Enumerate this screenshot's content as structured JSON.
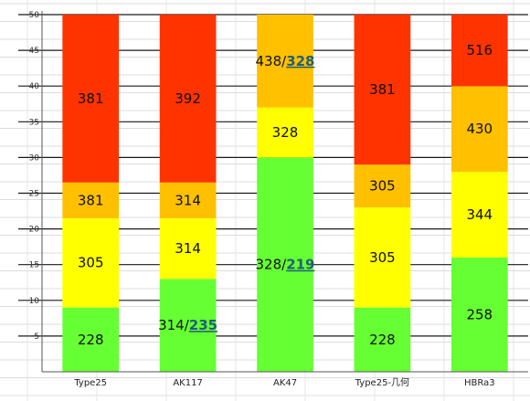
{
  "chart_data": {
    "type": "bar",
    "stacked": true,
    "title": "",
    "xlabel": "",
    "ylabel": "",
    "ylim": [
      0,
      50
    ],
    "yticks": [
      5,
      10,
      15,
      20,
      25,
      30,
      35,
      40,
      45,
      50
    ],
    "grid": true,
    "categories": [
      "Type25",
      "AK117",
      "AK47",
      "Type25-几何",
      "HBRa3"
    ],
    "bars": [
      {
        "category": "Type25",
        "segments": [
          {
            "from": 0,
            "to": 9,
            "label": "228",
            "color": "#66ff33"
          },
          {
            "from": 9,
            "to": 21.5,
            "label": "305",
            "color": "#ffff00"
          },
          {
            "from": 21.5,
            "to": 26.5,
            "label": "381",
            "color": "#ffc000"
          },
          {
            "from": 26.5,
            "to": 50,
            "label": "381",
            "color": "#ff3300"
          }
        ]
      },
      {
        "category": "AK117",
        "segments": [
          {
            "from": 0,
            "to": 13,
            "label": "314/",
            "label_emph": "235",
            "color": "#66ff33"
          },
          {
            "from": 13,
            "to": 21.5,
            "label": "314",
            "color": "#ffff00"
          },
          {
            "from": 21.5,
            "to": 26.5,
            "label": "314",
            "color": "#ffc000"
          },
          {
            "from": 26.5,
            "to": 50,
            "label": "392",
            "color": "#ff3300"
          }
        ]
      },
      {
        "category": "AK47",
        "segments": [
          {
            "from": 0,
            "to": 30,
            "label": "328/",
            "label_emph": "219",
            "color": "#66ff33"
          },
          {
            "from": 30,
            "to": 37,
            "label": "328",
            "color": "#ffff00"
          },
          {
            "from": 37,
            "to": 50,
            "label": "438/",
            "label_emph": "328",
            "color": "#ffc000"
          }
        ]
      },
      {
        "category": "Type25-几何",
        "segments": [
          {
            "from": 0,
            "to": 9,
            "label": "228",
            "color": "#66ff33"
          },
          {
            "from": 9,
            "to": 23,
            "label": "305",
            "color": "#ffff00"
          },
          {
            "from": 23,
            "to": 29,
            "label": "305",
            "color": "#ffc000"
          },
          {
            "from": 29,
            "to": 50,
            "label": "381",
            "color": "#ff3300"
          }
        ]
      },
      {
        "category": "HBRa3",
        "segments": [
          {
            "from": 0,
            "to": 16,
            "label": "258",
            "color": "#66ff33"
          },
          {
            "from": 16,
            "to": 28,
            "label": "344",
            "color": "#ffff00"
          },
          {
            "from": 28,
            "to": 40,
            "label": "430",
            "color": "#ffc000"
          },
          {
            "from": 40,
            "to": 50,
            "label": "516",
            "color": "#ff3300"
          }
        ]
      }
    ]
  }
}
